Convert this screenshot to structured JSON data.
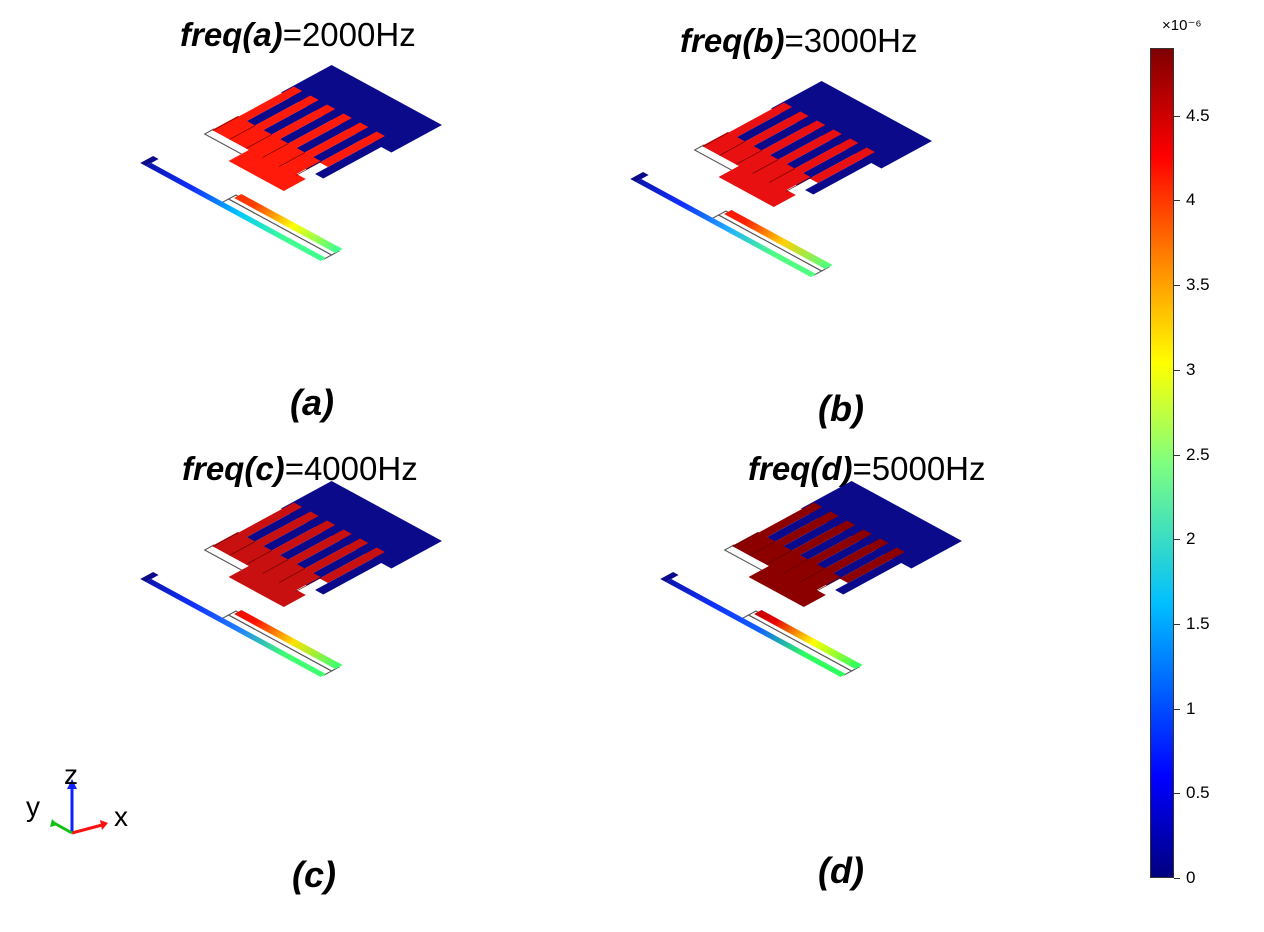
{
  "panels": [
    {
      "id": "a",
      "title_var": "freq(a)",
      "title_val": "=2000Hz",
      "letter": "(a)",
      "top_color": "#ff1a0a",
      "strip_top": "#ff4000",
      "strip_mid": "#ffff00",
      "strip_low": "#00c8ff",
      "strip_end": "#40ff90"
    },
    {
      "id": "b",
      "title_var": "freq(b)",
      "title_val": "=3000Hz",
      "letter": "(b)",
      "top_color": "#e81010",
      "strip_top": "#ff2000",
      "strip_mid": "#ffd000",
      "strip_low": "#20b0ff",
      "strip_end": "#50ff80"
    },
    {
      "id": "c",
      "title_var": "freq(c)",
      "title_val": "=4000Hz",
      "letter": "(c)",
      "top_color": "#c81010",
      "strip_top": "#ff1000",
      "strip_mid": "#ffe000",
      "strip_low": "#2080ff",
      "strip_end": "#40ff70"
    },
    {
      "id": "d",
      "title_var": "freq(d)",
      "title_val": "=5000Hz",
      "letter": "(d)",
      "top_color": "#8c0000",
      "strip_top": "#e80000",
      "strip_mid": "#ffff00",
      "strip_low": "#1060ff",
      "strip_end": "#30ff60"
    }
  ],
  "colorbar": {
    "scale_label": "×10⁻⁶",
    "min": 0,
    "max": 4.9,
    "ticks": [
      "0",
      "0.5",
      "1",
      "1.5",
      "2",
      "2.5",
      "3",
      "3.5",
      "4",
      "4.5"
    ],
    "tick_values": [
      0,
      0.5,
      1,
      1.5,
      2,
      2.5,
      3,
      3.5,
      4,
      4.5
    ]
  },
  "axes": {
    "x": "x",
    "y": "y",
    "z": "z"
  },
  "colors": {
    "min": "#00007f",
    "max": "#7f0000",
    "fixed_electrode": "#0a0a8a"
  }
}
